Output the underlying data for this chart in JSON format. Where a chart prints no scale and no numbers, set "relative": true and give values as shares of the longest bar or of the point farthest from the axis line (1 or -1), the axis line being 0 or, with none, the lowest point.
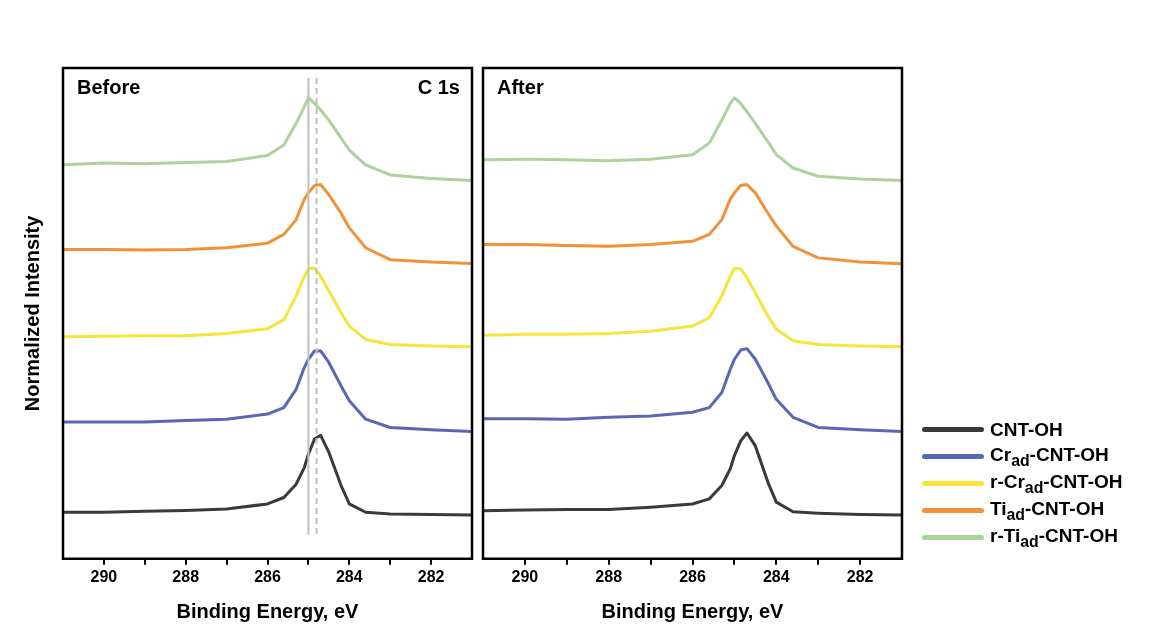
{
  "chart_data": [
    {
      "type": "line",
      "title": "Before",
      "ylabel": "Normalized Intensity",
      "xlabel": "Binding Energy, eV",
      "annotations": [
        "C 1s"
      ],
      "relative": true,
      "marker": "none",
      "line_style": "solid",
      "grid": false,
      "xlim": [
        291,
        281
      ],
      "xticks": [
        290,
        {
          "value": 289,
          "label": null
        },
        288,
        {
          "value": 287,
          "label": null
        },
        286,
        {
          "value": 285,
          "label": null
        },
        284,
        {
          "value": 283,
          "label": null
        },
        282
      ],
      "x": [
        291,
        290,
        289,
        288,
        287,
        286,
        285.6,
        285.3,
        285.1,
        285.0,
        284.85,
        284.7,
        284.5,
        284.2,
        284,
        283.6,
        283,
        282,
        281
      ],
      "ref_lines": [
        {
          "axis": "x",
          "value": 285.0,
          "color": "#c0c0c0",
          "line_style": "solid"
        },
        {
          "axis": "x",
          "value": 284.8,
          "color": "#c0c0c0",
          "line_style": "dashed"
        }
      ],
      "series": [
        {
          "color": "#3a3a3a",
          "values": [
            0.101,
            0.101,
            0.103,
            0.105,
            0.108,
            0.119,
            0.133,
            0.162,
            0.198,
            0.227,
            0.26,
            0.268,
            0.231,
            0.159,
            0.119,
            0.101,
            0.097,
            0.096,
            0.095
          ]
        },
        {
          "color": "#5b67b3",
          "values": [
            0.297,
            0.297,
            0.297,
            0.3,
            0.303,
            0.314,
            0.328,
            0.368,
            0.415,
            0.433,
            0.451,
            0.451,
            0.426,
            0.375,
            0.343,
            0.303,
            0.285,
            0.28,
            0.276
          ]
        },
        {
          "color": "#f7e43a",
          "values": [
            0.482,
            0.483,
            0.484,
            0.484,
            0.489,
            0.499,
            0.519,
            0.57,
            0.613,
            0.629,
            0.631,
            0.613,
            0.581,
            0.534,
            0.505,
            0.476,
            0.465,
            0.462,
            0.46
          ]
        },
        {
          "color": "#f2913a",
          "values": [
            0.671,
            0.671,
            0.67,
            0.671,
            0.675,
            0.685,
            0.704,
            0.736,
            0.78,
            0.794,
            0.81,
            0.812,
            0.79,
            0.75,
            0.718,
            0.675,
            0.649,
            0.644,
            0.641
          ]
        },
        {
          "color": "#acd39a",
          "values": [
            0.855,
            0.859,
            0.857,
            0.86,
            0.862,
            0.875,
            0.898,
            0.945,
            0.981,
            1.0,
            0.988,
            0.974,
            0.952,
            0.913,
            0.887,
            0.855,
            0.833,
            0.825,
            0.821
          ]
        }
      ]
    },
    {
      "type": "line",
      "title": "After",
      "xlabel": "Binding Energy, eV",
      "relative": true,
      "marker": "none",
      "line_style": "solid",
      "grid": false,
      "legend": "right",
      "xlim": [
        291,
        281
      ],
      "xticks": [
        290,
        {
          "value": 289,
          "label": null
        },
        288,
        {
          "value": 287,
          "label": null
        },
        286,
        {
          "value": 285,
          "label": null
        },
        284,
        {
          "value": 283,
          "label": null
        },
        282
      ],
      "x": [
        291,
        290,
        289,
        288,
        287,
        286,
        285.6,
        285.3,
        285.1,
        285.0,
        284.85,
        284.7,
        284.5,
        284.2,
        284,
        283.6,
        283,
        282,
        281
      ],
      "series": [
        {
          "name": "CNT-OH",
          "color": "#3a3a3a",
          "values": [
            0.104,
            0.106,
            0.107,
            0.107,
            0.112,
            0.119,
            0.13,
            0.159,
            0.195,
            0.224,
            0.256,
            0.273,
            0.245,
            0.166,
            0.123,
            0.102,
            0.099,
            0.096,
            0.095
          ]
        },
        {
          "name": "Cr$_{ad}$-CNT-OH",
          "color": "#5b67b3",
          "values": [
            0.304,
            0.304,
            0.303,
            0.307,
            0.31,
            0.318,
            0.328,
            0.361,
            0.411,
            0.433,
            0.453,
            0.456,
            0.433,
            0.382,
            0.346,
            0.307,
            0.285,
            0.28,
            0.276
          ]
        },
        {
          "name": "r-Cr$_{ad}$-CNT-OH",
          "color": "#f7e43a",
          "values": [
            0.485,
            0.487,
            0.487,
            0.489,
            0.494,
            0.505,
            0.523,
            0.57,
            0.613,
            0.631,
            0.629,
            0.61,
            0.577,
            0.527,
            0.498,
            0.473,
            0.465,
            0.462,
            0.46
          ]
        },
        {
          "name": "Ti$_{ad}$-CNT-OH",
          "color": "#f2913a",
          "values": [
            0.682,
            0.682,
            0.68,
            0.678,
            0.682,
            0.689,
            0.704,
            0.736,
            0.78,
            0.794,
            0.81,
            0.812,
            0.794,
            0.75,
            0.722,
            0.678,
            0.653,
            0.644,
            0.64
          ]
        },
        {
          "name": "r-Ti$_{ad}$-CNT-OH",
          "color": "#acd39a",
          "values": [
            0.866,
            0.867,
            0.866,
            0.864,
            0.867,
            0.877,
            0.902,
            0.952,
            0.988,
            1.0,
            0.988,
            0.97,
            0.945,
            0.905,
            0.877,
            0.848,
            0.83,
            0.824,
            0.821
          ]
        }
      ]
    }
  ]
}
